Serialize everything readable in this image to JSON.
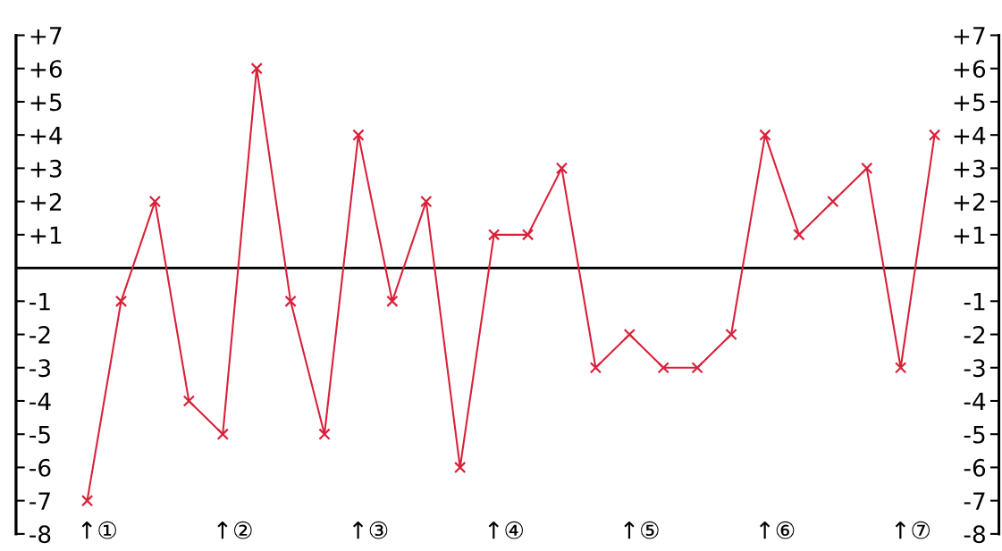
{
  "chart_data": {
    "type": "line",
    "categories": [
      null,
      null,
      null,
      null,
      null,
      null,
      null,
      null,
      null,
      null,
      null,
      null,
      null,
      null,
      null,
      null,
      null,
      null,
      null,
      null,
      null,
      null,
      null,
      null,
      null,
      null
    ],
    "series": [
      {
        "color": "#d9213a",
        "values": [
          -7,
          -1,
          2,
          -4,
          -5,
          6,
          -1,
          -5,
          4,
          -1,
          2,
          -6,
          1,
          1,
          3,
          -3,
          -2,
          -3,
          -3,
          -2,
          4,
          1,
          2,
          3,
          -3,
          4
        ]
      }
    ],
    "marker": "cross",
    "line_style": "solid",
    "grid": false,
    "legend": false,
    "tick_labels": "y",
    "ylim": [
      -8,
      7
    ],
    "yticks": [
      {
        "value": 7,
        "label": "+7"
      },
      {
        "value": 6,
        "label": "+6"
      },
      {
        "value": 5,
        "label": "+5"
      },
      {
        "value": 4,
        "label": "+4"
      },
      {
        "value": 3,
        "label": "+3"
      },
      {
        "value": 2,
        "label": "+2"
      },
      {
        "value": 1,
        "label": "+1"
      },
      -1,
      -2,
      -3,
      -4,
      -5,
      -6,
      -7,
      -8
    ],
    "y2lim": [
      -8,
      7
    ],
    "y2ticks": [
      {
        "value": 7,
        "label": "+7"
      },
      {
        "value": 6,
        "label": "+6"
      },
      {
        "value": 5,
        "label": "+5"
      },
      {
        "value": 4,
        "label": "+4"
      },
      {
        "value": 3,
        "label": "+3"
      },
      {
        "value": 2,
        "label": "+2"
      },
      {
        "value": 1,
        "label": "+1"
      },
      -1,
      -2,
      -3,
      -4,
      -5,
      -6,
      -7,
      -8
    ],
    "ref_lines": [
      {
        "axis": "y",
        "value": 0,
        "color": "#000000",
        "line_style": "solid"
      }
    ],
    "annotations": [
      "↑①",
      "↑②",
      "↑③",
      "↑④",
      "↑⑤",
      "↑⑥",
      "↑⑦"
    ]
  }
}
